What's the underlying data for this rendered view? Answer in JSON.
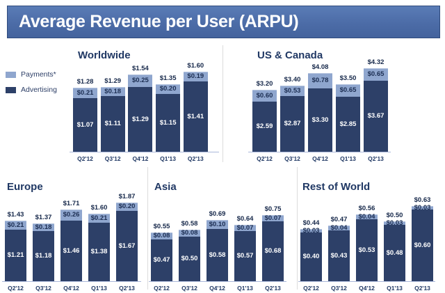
{
  "title": "Average Revenue per User (ARPU)",
  "legend": {
    "position": "left-of-worldwide-chart",
    "items": [
      {
        "label": "Payments*",
        "color": "#8fa6ce"
      },
      {
        "label": "Advertising",
        "color": "#2d4068"
      }
    ]
  },
  "colors": {
    "payments_segment": "#8fa6ce",
    "advertising_segment": "#2d4068",
    "title_bar_blue": "#4c6ca7",
    "navy_text": "#203864",
    "axis_line": "#a9b7d9"
  },
  "chart_data": [
    {
      "type": "bar",
      "stacked": true,
      "title": "Worldwide",
      "categories": [
        "Q2'12",
        "Q3'12",
        "Q4'12",
        "Q1'13",
        "Q2'13"
      ],
      "series": [
        {
          "name": "Payments*",
          "values": [
            0.21,
            0.18,
            0.25,
            0.2,
            0.19
          ]
        },
        {
          "name": "Advertising",
          "values": [
            1.07,
            1.11,
            1.29,
            1.15,
            1.41
          ]
        }
      ],
      "totals": [
        1.28,
        1.29,
        1.54,
        1.35,
        1.6
      ],
      "currency": "$",
      "xlabel": "",
      "ylabel": "",
      "grid": false,
      "legend_position": "left"
    },
    {
      "type": "bar",
      "stacked": true,
      "title": "US & Canada",
      "categories": [
        "Q2'12",
        "Q3'12",
        "Q4'12",
        "Q1'13",
        "Q2'13"
      ],
      "series": [
        {
          "name": "Payments*",
          "values": [
            0.6,
            0.53,
            0.78,
            0.65,
            0.65
          ]
        },
        {
          "name": "Advertising",
          "values": [
            2.59,
            2.87,
            3.3,
            2.85,
            3.67
          ]
        }
      ],
      "totals": [
        3.2,
        3.4,
        4.08,
        3.5,
        4.32
      ],
      "currency": "$",
      "xlabel": "",
      "ylabel": "",
      "grid": false,
      "legend_position": "none"
    },
    {
      "type": "bar",
      "stacked": true,
      "title": "Europe",
      "categories": [
        "Q2'12",
        "Q3'12",
        "Q4'12",
        "Q1'13",
        "Q2'13"
      ],
      "series": [
        {
          "name": "Payments*",
          "values": [
            0.21,
            0.18,
            0.26,
            0.21,
            0.2
          ]
        },
        {
          "name": "Advertising",
          "values": [
            1.21,
            1.18,
            1.46,
            1.38,
            1.67
          ]
        }
      ],
      "totals": [
        1.43,
        1.37,
        1.71,
        1.6,
        1.87
      ],
      "currency": "$",
      "xlabel": "",
      "ylabel": "",
      "grid": false,
      "legend_position": "none"
    },
    {
      "type": "bar",
      "stacked": true,
      "title": "Asia",
      "categories": [
        "Q2'12",
        "Q3'12",
        "Q4'12",
        "Q1'13",
        "Q2'13"
      ],
      "series": [
        {
          "name": "Payments*",
          "values": [
            0.08,
            0.08,
            0.1,
            0.07,
            0.07
          ]
        },
        {
          "name": "Advertising",
          "values": [
            0.47,
            0.5,
            0.58,
            0.57,
            0.68
          ]
        }
      ],
      "totals": [
        0.55,
        0.58,
        0.69,
        0.64,
        0.75
      ],
      "currency": "$",
      "xlabel": "",
      "ylabel": "",
      "grid": false,
      "legend_position": "none"
    },
    {
      "type": "bar",
      "stacked": true,
      "title": "Rest of World",
      "categories": [
        "Q2'12",
        "Q3'12",
        "Q4'12",
        "Q1'13",
        "Q2'13"
      ],
      "series": [
        {
          "name": "Payments*",
          "values": [
            0.03,
            0.04,
            0.04,
            0.03,
            0.03
          ]
        },
        {
          "name": "Advertising",
          "values": [
            0.4,
            0.43,
            0.53,
            0.48,
            0.6
          ]
        }
      ],
      "totals": [
        0.44,
        0.47,
        0.56,
        0.5,
        0.63
      ],
      "currency": "$",
      "xlabel": "",
      "ylabel": "",
      "grid": false,
      "legend_position": "none"
    }
  ]
}
